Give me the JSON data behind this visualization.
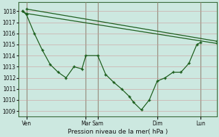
{
  "xlabel": "Pression niveau de la mer( hPa )",
  "background_color": "#cce8e0",
  "grid_color": "#cc9999",
  "line_color": "#1a5c1a",
  "ylim": [
    1008.5,
    1018.8
  ],
  "yticks": [
    1009,
    1010,
    1011,
    1012,
    1013,
    1014,
    1015,
    1016,
    1017,
    1018
  ],
  "xlim": [
    -0.5,
    24.5
  ],
  "xtick_positions": [
    0.5,
    8.0,
    9.5,
    17.0,
    22.5
  ],
  "xtick_labels": [
    "Ven",
    "Mar",
    "Sam",
    "Dim",
    "Lun"
  ],
  "vline_positions": [
    0.5,
    8.0,
    9.5,
    17.0,
    22.5
  ],
  "series1_x": [
    0,
    0.5,
    1.5,
    2.5,
    3.5,
    4.5,
    5.5,
    6.5,
    7.5,
    8.0,
    9.5,
    10.5,
    11.5,
    12.5,
    13.5,
    14.0,
    15.0,
    16.0,
    17.0,
    18.0,
    19.0,
    20.0,
    21.0,
    22.0,
    22.5
  ],
  "series1_y": [
    1018.0,
    1017.7,
    1016.0,
    1014.5,
    1013.2,
    1012.5,
    1012.0,
    1013.0,
    1012.8,
    1014.0,
    1014.0,
    1012.3,
    1011.6,
    1011.0,
    1010.3,
    1009.8,
    1009.1,
    1010.0,
    1011.7,
    1012.0,
    1012.5,
    1012.5,
    1013.3,
    1015.0,
    1015.2
  ],
  "series2_x": [
    0,
    0.5,
    24.5
  ],
  "series2_y": [
    1018.0,
    1017.8,
    1015.1
  ],
  "series3_x": [
    0.5,
    24.5
  ],
  "series3_y": [
    1018.2,
    1015.3
  ]
}
